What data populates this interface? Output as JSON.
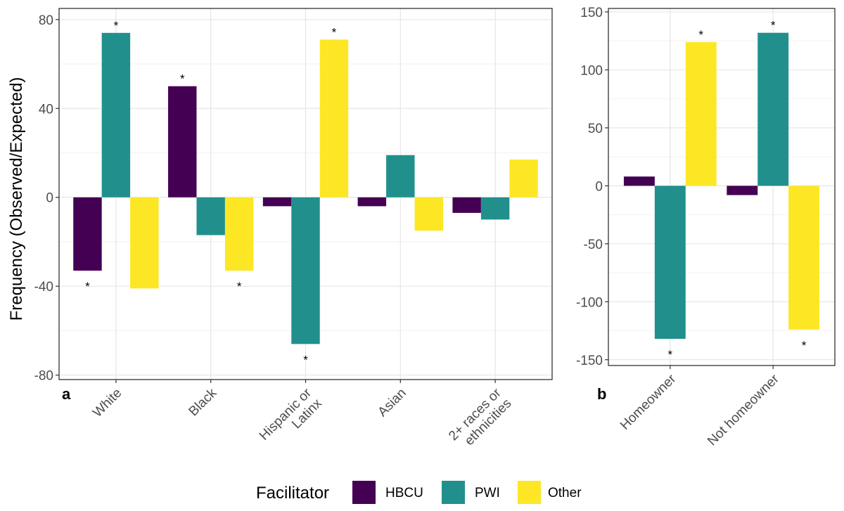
{
  "ylabel": "Frequency (Observed/Expected)",
  "legend": {
    "title": "Facilitator",
    "items": [
      {
        "label": "HBCU",
        "color": "#440154"
      },
      {
        "label": "PWI",
        "color": "#21908C"
      },
      {
        "label": "Other",
        "color": "#FDE725"
      }
    ]
  },
  "chart_data": [
    {
      "panel": "a",
      "type": "bar",
      "categories": [
        "White",
        "Black",
        "Hispanic or\nLatinx",
        "Asian",
        "2+ races or\nethnicities"
      ],
      "series": [
        {
          "name": "HBCU",
          "values": [
            -33,
            50,
            -4,
            -4,
            -7
          ]
        },
        {
          "name": "PWI",
          "values": [
            74,
            -17,
            -66,
            19,
            -10
          ]
        },
        {
          "name": "Other",
          "values": [
            -41,
            -33,
            71,
            -15,
            17
          ]
        }
      ],
      "significant": [
        [
          true,
          true,
          false,
          false,
          false
        ],
        [
          true,
          false,
          true,
          false,
          false
        ],
        [
          false,
          true,
          true,
          false,
          false
        ]
      ],
      "ylim": [
        -82,
        85
      ],
      "yticks": [
        -80,
        -40,
        0,
        40,
        80
      ],
      "grid": true,
      "legend": "bottom"
    },
    {
      "panel": "b",
      "type": "bar",
      "categories": [
        "Homeowner",
        "Not homeowner"
      ],
      "series": [
        {
          "name": "HBCU",
          "values": [
            8,
            -8
          ]
        },
        {
          "name": "PWI",
          "values": [
            -132,
            132
          ]
        },
        {
          "name": "Other",
          "values": [
            124,
            -124
          ]
        }
      ],
      "significant": [
        [
          false,
          false
        ],
        [
          true,
          true
        ],
        [
          true,
          true
        ]
      ],
      "ylim": [
        -155,
        153
      ],
      "yticks": [
        -150,
        -100,
        -50,
        0,
        50,
        100,
        150
      ],
      "grid": true,
      "legend": "bottom"
    }
  ]
}
